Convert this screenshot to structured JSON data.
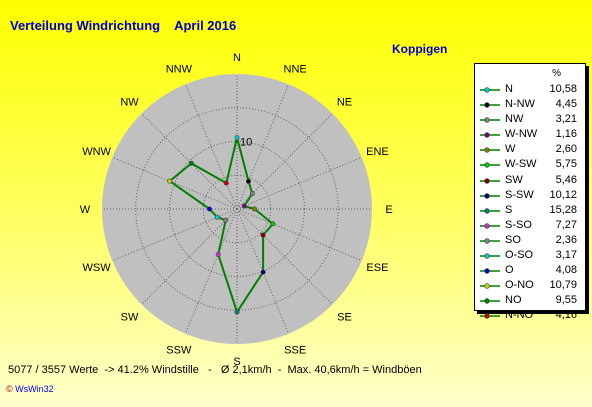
{
  "header": {
    "title": "Verteilung Windrichtung    April 2016",
    "location": "Koppigen"
  },
  "legend": {
    "unit_label": "%"
  },
  "footer": {
    "stats": "5077 / 3557 Werte  -> 41.2% Windstille   -   Ø 2,1km/h  -  Max. 40,6km/h = Windböen"
  },
  "credit": {
    "mark": "©",
    "label": "WsWin32"
  },
  "chart_data": {
    "type": "radar",
    "title": "Verteilung Windrichtung    April 2016",
    "subtitle": "Koppigen",
    "radial_max": 20,
    "ring_step": 5,
    "radial_label": "10",
    "line_color": "#008000",
    "categories": [
      "N",
      "NNE",
      "NE",
      "ENE",
      "E",
      "ESE",
      "SE",
      "SSE",
      "S",
      "SSW",
      "SW",
      "WSW",
      "W",
      "WNW",
      "NW",
      "NNW"
    ],
    "axis_labels": [
      "N",
      "NNE",
      "NE",
      "ENE",
      "E",
      "ESE",
      "SE",
      "SSE",
      "S",
      "SSW",
      "SW",
      "WSW",
      "W",
      "WNW",
      "NW",
      "NNW"
    ],
    "series": [
      {
        "label": "N",
        "value": 10.58,
        "color": "#00cccc"
      },
      {
        "label": "N-NW",
        "value": 4.45,
        "color": "#000000"
      },
      {
        "label": "NW",
        "value": 3.21,
        "color": "#808080"
      },
      {
        "label": "W-NW",
        "value": 1.16,
        "color": "#800080"
      },
      {
        "label": "W",
        "value": 2.6,
        "color": "#808000"
      },
      {
        "label": "W-SW",
        "value": 5.75,
        "color": "#00cc00"
      },
      {
        "label": "SW",
        "value": 5.46,
        "color": "#800000"
      },
      {
        "label": "S-SW",
        "value": 10.12,
        "color": "#000080"
      },
      {
        "label": "S",
        "value": 15.28,
        "color": "#008080"
      },
      {
        "label": "S-SO",
        "value": 7.27,
        "color": "#cc33cc"
      },
      {
        "label": "SO",
        "value": 2.36,
        "color": "#808080"
      },
      {
        "label": "O-SO",
        "value": 3.17,
        "color": "#00cccc"
      },
      {
        "label": "O",
        "value": 4.08,
        "color": "#0000cc"
      },
      {
        "label": "O-NO",
        "value": 10.79,
        "color": "#cccc00"
      },
      {
        "label": "NO",
        "value": 9.55,
        "color": "#008000"
      },
      {
        "label": "N-NO",
        "value": 4.16,
        "color": "#cc0000"
      }
    ]
  }
}
